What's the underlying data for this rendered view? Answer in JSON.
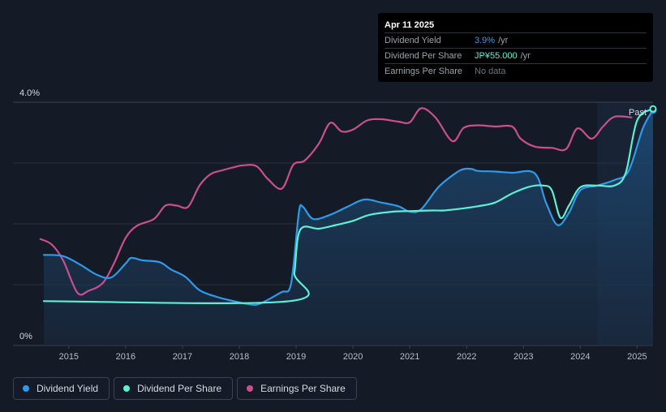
{
  "tooltip": {
    "date": "Apr 11 2025",
    "rows": [
      {
        "label": "Dividend Yield",
        "value": "3.9%",
        "unit": "/yr"
      },
      {
        "label": "Dividend Per Share",
        "value": "JP¥55.000",
        "unit": "/yr"
      },
      {
        "label": "Earnings Per Share",
        "value": "No data",
        "unit": ""
      }
    ]
  },
  "legend": [
    {
      "label": "Dividend Yield",
      "color": "#2f9ae9"
    },
    {
      "label": "Dividend Per Share",
      "color": "#5cf0d4"
    },
    {
      "label": "Earnings Per Share",
      "color": "#c94f8f"
    }
  ],
  "chart_data": {
    "type": "line",
    "past_label": "Past",
    "y_ticks": [
      "4.0%",
      "0%"
    ],
    "ylim": [
      0,
      4.0
    ],
    "xlim": [
      2014.0,
      2025.28
    ],
    "x_ticks": [
      "2015",
      "2016",
      "2017",
      "2018",
      "2019",
      "2020",
      "2021",
      "2022",
      "2023",
      "2024",
      "2025"
    ],
    "grid": true,
    "forecast_start": 2024.3,
    "series": [
      {
        "name": "Dividend Yield",
        "color": "#2f9ae9",
        "points": [
          [
            2014.56,
            1.49
          ],
          [
            2014.9,
            1.47
          ],
          [
            2015.2,
            1.33
          ],
          [
            2015.5,
            1.16
          ],
          [
            2015.75,
            1.12
          ],
          [
            2016.0,
            1.35
          ],
          [
            2016.1,
            1.44
          ],
          [
            2016.3,
            1.4
          ],
          [
            2016.6,
            1.37
          ],
          [
            2016.8,
            1.25
          ],
          [
            2017.05,
            1.13
          ],
          [
            2017.3,
            0.91
          ],
          [
            2017.6,
            0.8
          ],
          [
            2017.9,
            0.73
          ],
          [
            2018.1,
            0.69
          ],
          [
            2018.3,
            0.67
          ],
          [
            2018.5,
            0.75
          ],
          [
            2018.75,
            0.88
          ],
          [
            2018.88,
            0.92
          ],
          [
            2018.95,
            1.28
          ],
          [
            2019.05,
            2.2
          ],
          [
            2019.12,
            2.28
          ],
          [
            2019.3,
            2.08
          ],
          [
            2019.6,
            2.15
          ],
          [
            2019.9,
            2.28
          ],
          [
            2020.2,
            2.4
          ],
          [
            2020.5,
            2.35
          ],
          [
            2020.8,
            2.29
          ],
          [
            2021.0,
            2.2
          ],
          [
            2021.2,
            2.24
          ],
          [
            2021.5,
            2.6
          ],
          [
            2021.8,
            2.83
          ],
          [
            2021.95,
            2.9
          ],
          [
            2022.1,
            2.9
          ],
          [
            2022.2,
            2.87
          ],
          [
            2022.5,
            2.86
          ],
          [
            2022.8,
            2.84
          ],
          [
            2023.2,
            2.83
          ],
          [
            2023.4,
            2.34
          ],
          [
            2023.6,
            1.98
          ],
          [
            2023.8,
            2.18
          ],
          [
            2024.0,
            2.55
          ],
          [
            2024.3,
            2.63
          ],
          [
            2024.6,
            2.72
          ],
          [
            2024.85,
            2.87
          ],
          [
            2025.1,
            3.57
          ],
          [
            2025.28,
            3.87
          ]
        ]
      },
      {
        "name": "Dividend Per Share",
        "color": "#5cf0d4",
        "points": [
          [
            2014.56,
            0.73
          ],
          [
            2018.88,
            0.73
          ],
          [
            2018.97,
            1.2
          ],
          [
            2019.07,
            1.9
          ],
          [
            2019.4,
            1.92
          ],
          [
            2019.7,
            1.98
          ],
          [
            2020.0,
            2.05
          ],
          [
            2020.3,
            2.15
          ],
          [
            2020.7,
            2.2
          ],
          [
            2021.0,
            2.21
          ],
          [
            2021.4,
            2.22
          ],
          [
            2021.6,
            2.22
          ],
          [
            2021.9,
            2.25
          ],
          [
            2022.2,
            2.29
          ],
          [
            2022.5,
            2.35
          ],
          [
            2022.8,
            2.5
          ],
          [
            2023.1,
            2.61
          ],
          [
            2023.35,
            2.63
          ],
          [
            2023.5,
            2.55
          ],
          [
            2023.65,
            2.1
          ],
          [
            2023.8,
            2.3
          ],
          [
            2024.0,
            2.6
          ],
          [
            2024.3,
            2.63
          ],
          [
            2024.6,
            2.63
          ],
          [
            2024.8,
            2.84
          ],
          [
            2025.0,
            3.7
          ],
          [
            2025.28,
            3.89
          ]
        ]
      },
      {
        "name": "Earnings Per Share",
        "color": "#c94f8f",
        "points": [
          [
            2014.5,
            1.75
          ],
          [
            2014.7,
            1.66
          ],
          [
            2014.9,
            1.4
          ],
          [
            2015.15,
            0.87
          ],
          [
            2015.35,
            0.9
          ],
          [
            2015.6,
            1.03
          ],
          [
            2015.8,
            1.36
          ],
          [
            2016.0,
            1.77
          ],
          [
            2016.2,
            1.97
          ],
          [
            2016.5,
            2.08
          ],
          [
            2016.7,
            2.3
          ],
          [
            2016.9,
            2.3
          ],
          [
            2017.1,
            2.28
          ],
          [
            2017.3,
            2.63
          ],
          [
            2017.5,
            2.82
          ],
          [
            2017.7,
            2.88
          ],
          [
            2017.9,
            2.93
          ],
          [
            2018.05,
            2.96
          ],
          [
            2018.3,
            2.95
          ],
          [
            2018.5,
            2.74
          ],
          [
            2018.75,
            2.58
          ],
          [
            2018.95,
            2.97
          ],
          [
            2019.15,
            3.04
          ],
          [
            2019.4,
            3.32
          ],
          [
            2019.6,
            3.66
          ],
          [
            2019.8,
            3.52
          ],
          [
            2020.0,
            3.55
          ],
          [
            2020.25,
            3.7
          ],
          [
            2020.5,
            3.72
          ],
          [
            2020.8,
            3.68
          ],
          [
            2021.0,
            3.67
          ],
          [
            2021.2,
            3.9
          ],
          [
            2021.45,
            3.75
          ],
          [
            2021.75,
            3.36
          ],
          [
            2021.95,
            3.58
          ],
          [
            2022.2,
            3.62
          ],
          [
            2022.5,
            3.6
          ],
          [
            2022.8,
            3.6
          ],
          [
            2022.95,
            3.4
          ],
          [
            2023.2,
            3.27
          ],
          [
            2023.5,
            3.25
          ],
          [
            2023.75,
            3.23
          ],
          [
            2023.95,
            3.57
          ],
          [
            2024.2,
            3.4
          ],
          [
            2024.4,
            3.6
          ],
          [
            2024.6,
            3.76
          ],
          [
            2024.9,
            3.75
          ]
        ]
      }
    ]
  }
}
